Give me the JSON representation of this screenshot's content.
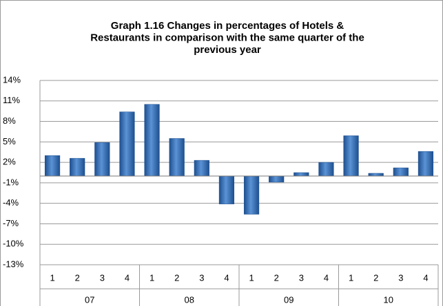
{
  "chart_data": {
    "type": "bar",
    "title": [
      "Graph 1.16 Changes in percentages of Hotels &",
      "Restaurants in comparison with the same  quarter of the",
      "previous year"
    ],
    "categories": [
      "1",
      "2",
      "3",
      "4",
      "1",
      "2",
      "3",
      "4",
      "1",
      "2",
      "3",
      "4",
      "1",
      "2",
      "3",
      "4"
    ],
    "groups": [
      "07",
      "08",
      "09",
      "10"
    ],
    "values": [
      3.0,
      2.6,
      4.9,
      9.4,
      10.5,
      5.5,
      2.3,
      -4.1,
      -5.6,
      -0.9,
      0.5,
      2.0,
      5.9,
      0.4,
      1.2,
      3.6
    ],
    "color": "#2f6db5",
    "ylim": [
      -13,
      14
    ],
    "yticks": [
      {
        "value": 14,
        "label": "14%"
      },
      {
        "value": 11,
        "label": "11%"
      },
      {
        "value": 8,
        "label": "8%"
      },
      {
        "value": 5,
        "label": "5%"
      },
      {
        "value": 2,
        "label": "2%"
      },
      {
        "value": -1,
        "label": "-1%"
      },
      {
        "value": -4,
        "label": "-4%"
      },
      {
        "value": -7,
        "label": "-7%"
      },
      {
        "value": -10,
        "label": "-10%"
      },
      {
        "value": -13,
        "label": "-13%"
      }
    ],
    "grid": true
  }
}
